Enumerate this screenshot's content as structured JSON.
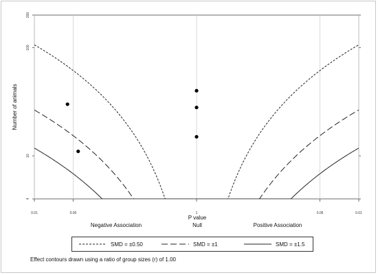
{
  "chart_data": {
    "type": "scatter",
    "title": "",
    "xlabel": "P value",
    "ylabel": "Number of animals",
    "x_ticks": [
      {
        "label": "0.01",
        "signed_z": -2.576
      },
      {
        "label": "0.05",
        "signed_z": -1.96
      },
      {
        "label": "1",
        "signed_z": 0
      },
      {
        "label": "0.05",
        "signed_z": 1.96
      },
      {
        "label": "0.01",
        "signed_z": 2.576
      }
    ],
    "xlim_signed_z": [
      -2.576,
      2.576
    ],
    "y_scale": "log",
    "y_ticks": [
      4,
      10,
      100,
      200
    ],
    "ylim": [
      4,
      200
    ],
    "region_labels": [
      "Negative Association",
      "Null",
      "Positive Association"
    ],
    "series": [
      {
        "name": "SMD = ±0.50",
        "style": "short-dash",
        "smd": 0.5
      },
      {
        "name": "SMD = ±1",
        "style": "long-dash",
        "smd": 1
      },
      {
        "name": "SMD = ±1.5",
        "style": "solid",
        "smd": 1.5
      }
    ],
    "points": [
      {
        "p": 0.04,
        "side": "negative",
        "signed_z": -2.05,
        "n": 30
      },
      {
        "p": 0.06,
        "side": "negative",
        "signed_z": -1.88,
        "n": 11
      },
      {
        "p": 1,
        "side": "null",
        "signed_z": 0,
        "n": 40
      },
      {
        "p": 1,
        "side": "null",
        "signed_z": 0,
        "n": 28
      },
      {
        "p": 1,
        "side": "null",
        "signed_z": 0,
        "n": 15
      }
    ],
    "group_ratio": 1.0,
    "grid": false,
    "legend_position": "bottom"
  },
  "legend": {
    "items": [
      {
        "label": "SMD = ±0.50",
        "style": "short-dash"
      },
      {
        "label": "SMD = ±1",
        "style": "long-dash"
      },
      {
        "label": "SMD = ±1.5",
        "style": "solid"
      }
    ]
  },
  "note": "Effect contours drawn using a ratio of group sizes (r) of 1.00"
}
